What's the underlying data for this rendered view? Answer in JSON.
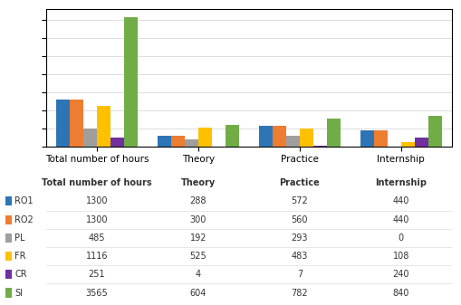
{
  "chart_data": {
    "type": "bar",
    "categories": [
      "Total number of hours",
      "Theory",
      "Practice",
      "Internship"
    ],
    "series": [
      {
        "name": "RO1",
        "color": "#2e75b6",
        "values": [
          1300,
          288,
          572,
          440
        ]
      },
      {
        "name": "RO2",
        "color": "#ed7d31",
        "values": [
          1300,
          300,
          560,
          440
        ]
      },
      {
        "name": "PL",
        "color": "#9e9e9e",
        "values": [
          485,
          192,
          293,
          0
        ]
      },
      {
        "name": "FR",
        "color": "#ffc000",
        "values": [
          1116,
          525,
          483,
          108
        ]
      },
      {
        "name": "CR",
        "color": "#7030a0",
        "values": [
          251,
          4,
          7,
          240
        ]
      },
      {
        "name": "SI",
        "color": "#70ad47",
        "values": [
          3565,
          604,
          782,
          840
        ]
      }
    ],
    "ylim": [
      0,
      3800
    ],
    "yticks": [
      0,
      500,
      1000,
      1500,
      2000,
      2500,
      3000,
      3500
    ],
    "grid": true,
    "tick_labels": "x",
    "data_labels": true
  }
}
